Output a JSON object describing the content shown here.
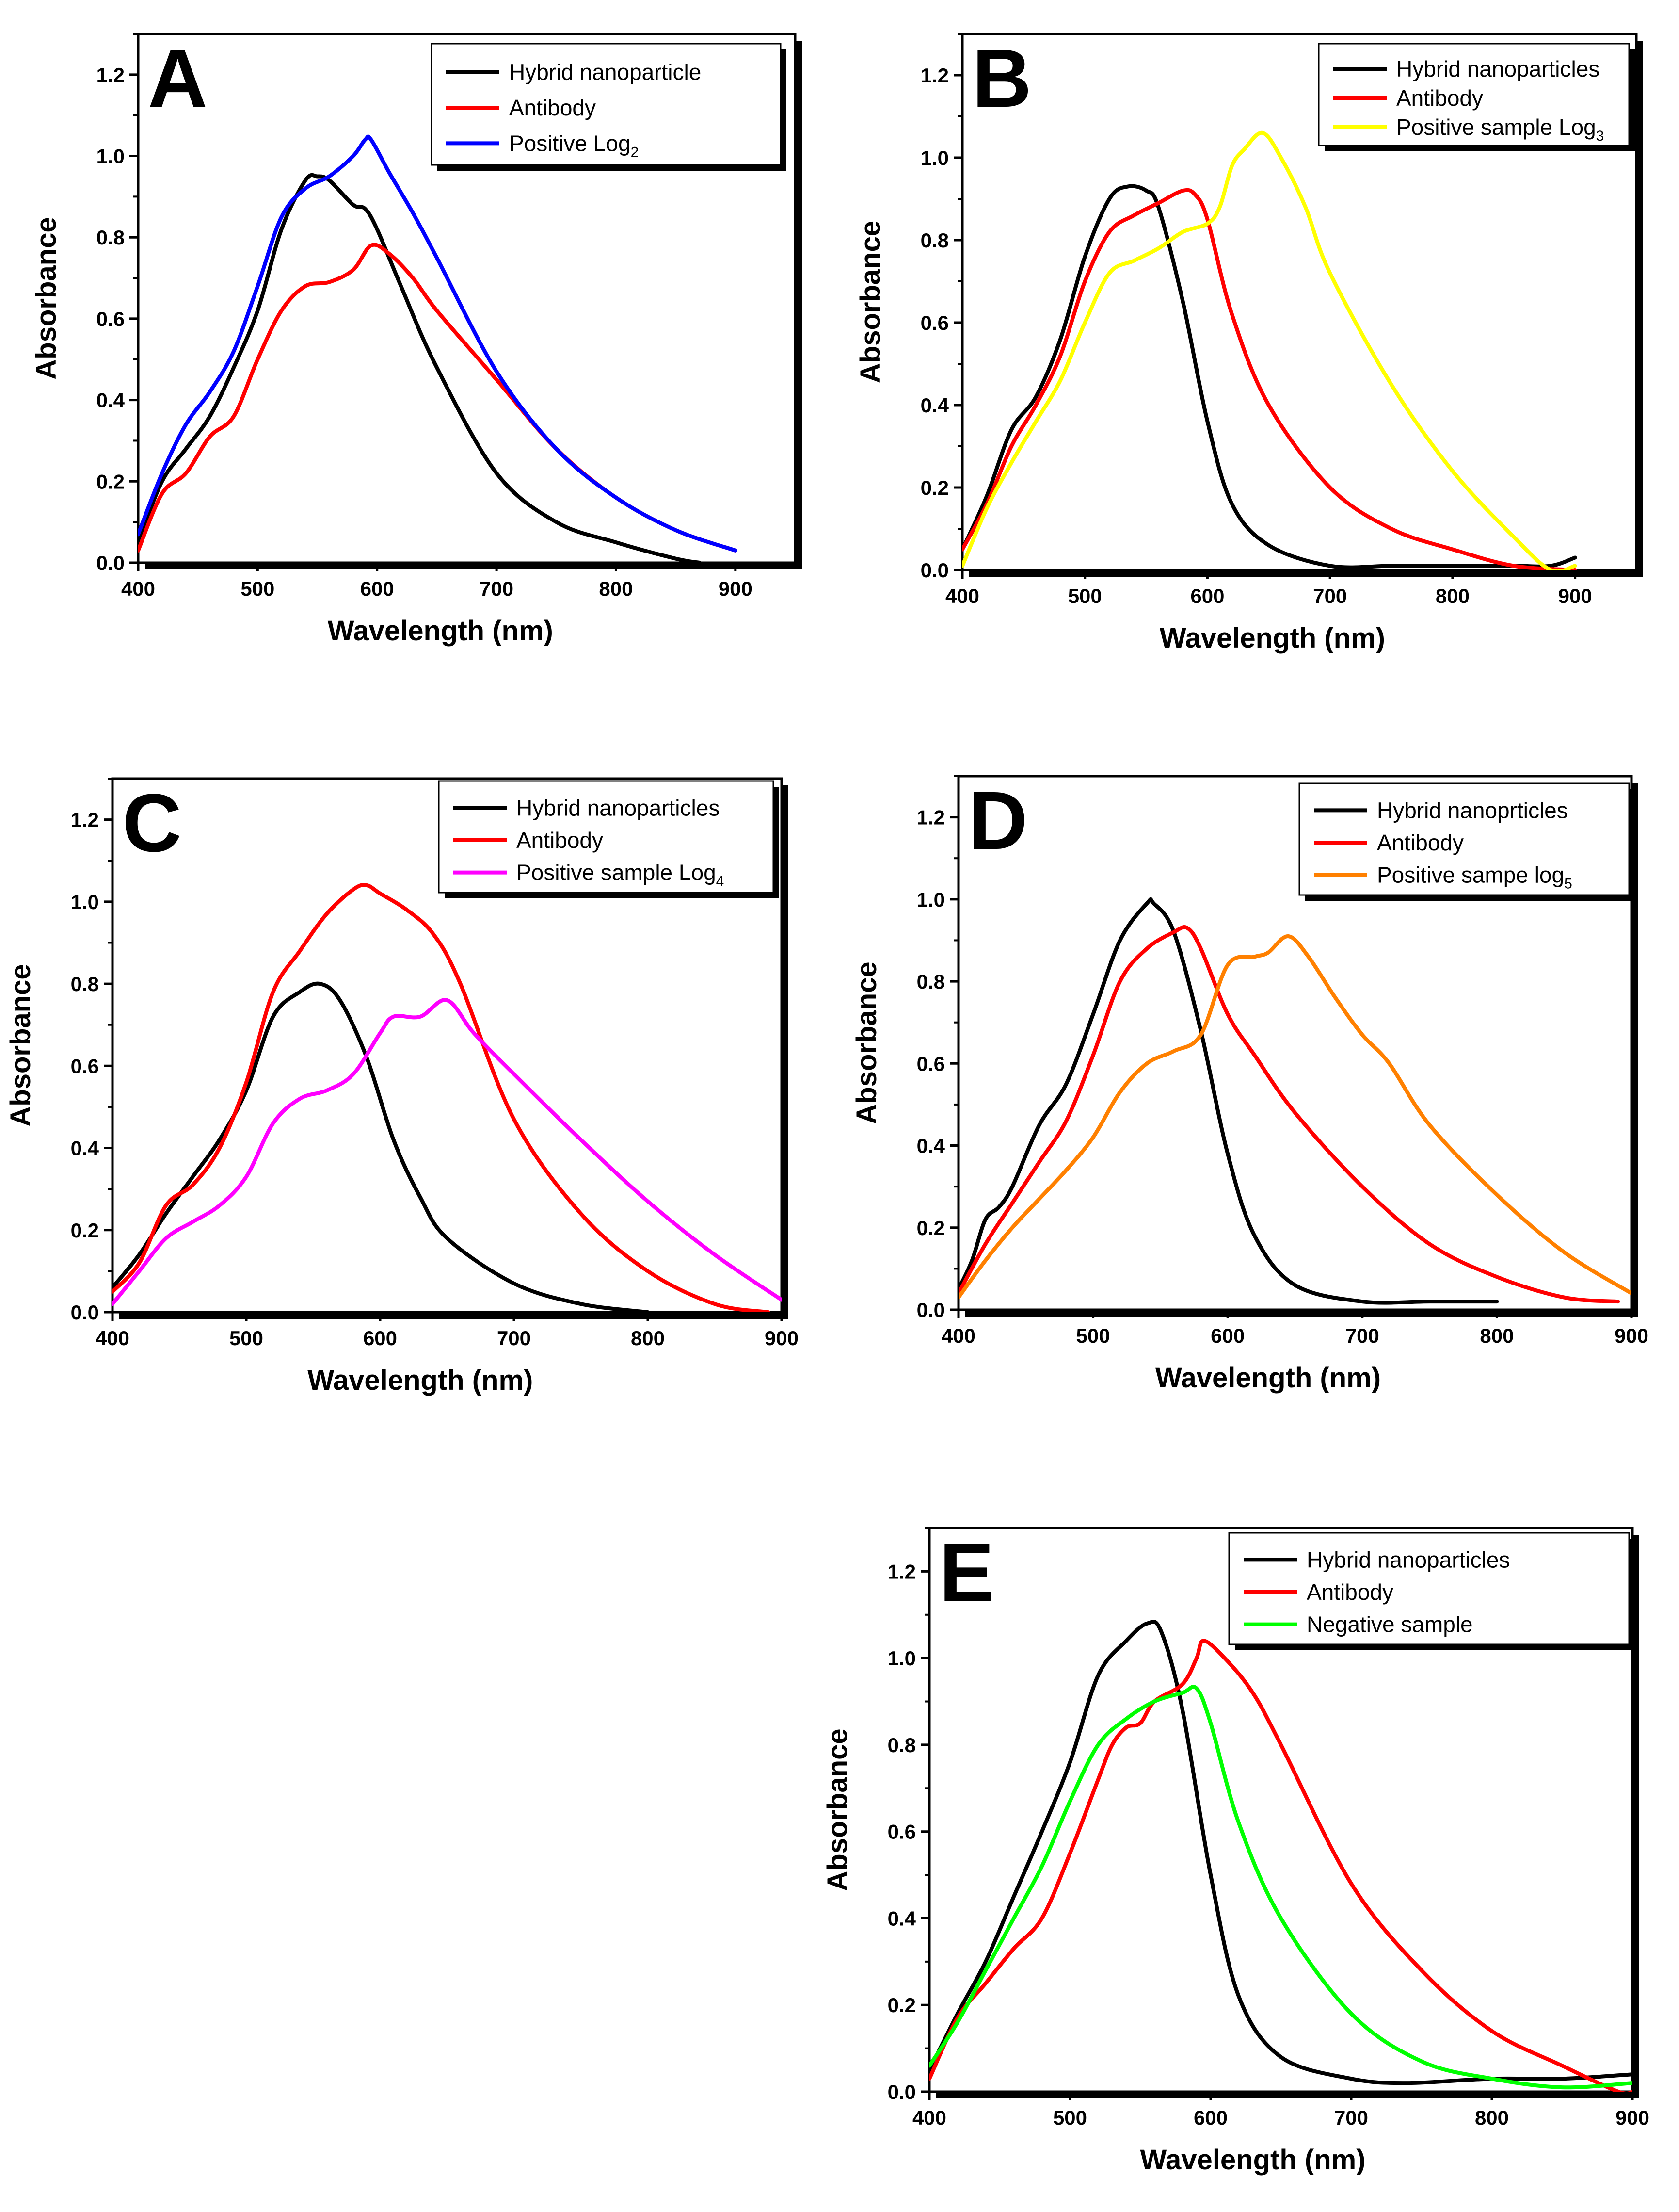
{
  "chart_data": [
    {
      "type": "line",
      "panel": "A",
      "xlabel": "Wavelength (nm)",
      "ylabel": "Absorbance",
      "xlim": [
        400,
        950
      ],
      "ylim": [
        0,
        1.3
      ],
      "xticks": [
        400,
        500,
        600,
        700,
        800,
        900
      ],
      "yticks": [
        0.0,
        0.2,
        0.4,
        0.6,
        0.8,
        1.0,
        1.2
      ],
      "legend_position": "top-right",
      "series": [
        {
          "name": "Hybrid nanoparticle",
          "color": "#000000",
          "x": [
            400,
            420,
            440,
            460,
            480,
            500,
            520,
            540,
            550,
            560,
            580,
            590,
            600,
            620,
            650,
            700,
            750,
            800,
            850,
            870
          ],
          "y": [
            0.05,
            0.2,
            0.28,
            0.36,
            0.48,
            0.62,
            0.82,
            0.94,
            0.95,
            0.94,
            0.88,
            0.87,
            0.82,
            0.68,
            0.48,
            0.22,
            0.1,
            0.05,
            0.01,
            0.0
          ]
        },
        {
          "name": "Antibody",
          "color": "#ff0000",
          "x": [
            400,
            420,
            440,
            460,
            480,
            500,
            520,
            540,
            560,
            580,
            595,
            610,
            630,
            650,
            700,
            750,
            800,
            850,
            900
          ],
          "y": [
            0.03,
            0.17,
            0.22,
            0.31,
            0.36,
            0.5,
            0.62,
            0.68,
            0.69,
            0.72,
            0.78,
            0.76,
            0.7,
            0.62,
            0.45,
            0.28,
            0.16,
            0.08,
            0.03
          ]
        },
        {
          "name": "Positive Log",
          "name_subscript": "2",
          "color": "#0000ff",
          "x": [
            400,
            420,
            440,
            460,
            480,
            500,
            520,
            540,
            560,
            580,
            590,
            595,
            610,
            630,
            650,
            700,
            750,
            800,
            850,
            900
          ],
          "y": [
            0.07,
            0.22,
            0.34,
            0.42,
            0.52,
            0.68,
            0.85,
            0.92,
            0.95,
            1.0,
            1.04,
            1.04,
            0.96,
            0.86,
            0.75,
            0.47,
            0.28,
            0.16,
            0.08,
            0.03
          ]
        }
      ]
    },
    {
      "type": "line",
      "panel": "B",
      "xlabel": "Wavelength (nm)",
      "ylabel": "Absorbance",
      "xlim": [
        400,
        950
      ],
      "ylim": [
        0,
        1.3
      ],
      "xticks": [
        400,
        500,
        600,
        700,
        800,
        900
      ],
      "yticks": [
        0.0,
        0.2,
        0.4,
        0.6,
        0.8,
        1.0,
        1.2
      ],
      "legend_position": "top-right",
      "series": [
        {
          "name": "Hybrid nanoparticles",
          "color": "#000000",
          "x": [
            400,
            420,
            440,
            460,
            480,
            500,
            520,
            535,
            550,
            560,
            580,
            600,
            620,
            650,
            700,
            750,
            800,
            850,
            880,
            900
          ],
          "y": [
            0.05,
            0.18,
            0.34,
            0.42,
            0.56,
            0.76,
            0.9,
            0.93,
            0.92,
            0.88,
            0.65,
            0.36,
            0.16,
            0.06,
            0.01,
            0.01,
            0.01,
            0.01,
            0.01,
            0.03
          ]
        },
        {
          "name": "Antibody",
          "color": "#ff0000",
          "x": [
            400,
            420,
            440,
            460,
            480,
            500,
            520,
            540,
            560,
            580,
            590,
            600,
            620,
            650,
            700,
            750,
            800,
            850,
            900
          ],
          "y": [
            0.05,
            0.16,
            0.3,
            0.4,
            0.52,
            0.7,
            0.82,
            0.86,
            0.89,
            0.92,
            0.91,
            0.85,
            0.62,
            0.4,
            0.2,
            0.1,
            0.05,
            0.01,
            0.0
          ]
        },
        {
          "name": "Positive sample Log",
          "name_subscript": "3",
          "color": "#ffff00",
          "x": [
            400,
            420,
            440,
            460,
            480,
            500,
            520,
            540,
            560,
            580,
            600,
            610,
            620,
            630,
            645,
            660,
            680,
            700,
            750,
            800,
            850,
            880,
            900
          ],
          "y": [
            0.01,
            0.15,
            0.26,
            0.36,
            0.46,
            0.6,
            0.72,
            0.75,
            0.78,
            0.82,
            0.84,
            0.88,
            0.98,
            1.02,
            1.06,
            1.0,
            0.88,
            0.72,
            0.45,
            0.24,
            0.08,
            0.0,
            0.01
          ]
        }
      ]
    },
    {
      "type": "line",
      "panel": "C",
      "xlabel": "Wavelength (nm)",
      "ylabel": "Absorbance",
      "xlim": [
        400,
        900
      ],
      "ylim": [
        0,
        1.3
      ],
      "xticks": [
        400,
        500,
        600,
        700,
        800,
        900
      ],
      "yticks": [
        0.0,
        0.2,
        0.4,
        0.6,
        0.8,
        1.0,
        1.2
      ],
      "legend_position": "top-right",
      "series": [
        {
          "name": "Hybrid nanoparticles",
          "color": "#000000",
          "x": [
            400,
            420,
            440,
            460,
            480,
            500,
            520,
            540,
            555,
            570,
            590,
            610,
            630,
            650,
            700,
            750,
            800
          ],
          "y": [
            0.06,
            0.14,
            0.24,
            0.33,
            0.42,
            0.54,
            0.72,
            0.78,
            0.8,
            0.76,
            0.62,
            0.42,
            0.28,
            0.18,
            0.07,
            0.02,
            0.0
          ]
        },
        {
          "name": "Antibody",
          "color": "#ff0000",
          "x": [
            400,
            420,
            440,
            460,
            480,
            500,
            520,
            540,
            560,
            580,
            590,
            600,
            620,
            640,
            660,
            700,
            750,
            800,
            850,
            890
          ],
          "y": [
            0.05,
            0.12,
            0.26,
            0.31,
            0.4,
            0.56,
            0.78,
            0.88,
            0.97,
            1.03,
            1.04,
            1.02,
            0.98,
            0.92,
            0.8,
            0.47,
            0.24,
            0.1,
            0.02,
            0.0
          ]
        },
        {
          "name": "Positive sample Log",
          "name_subscript": "4",
          "color": "#ff00ff",
          "x": [
            400,
            420,
            440,
            460,
            480,
            500,
            520,
            540,
            560,
            580,
            600,
            610,
            630,
            650,
            670,
            700,
            750,
            800,
            850,
            900
          ],
          "y": [
            0.02,
            0.1,
            0.18,
            0.22,
            0.26,
            0.33,
            0.46,
            0.52,
            0.54,
            0.58,
            0.68,
            0.72,
            0.72,
            0.76,
            0.68,
            0.58,
            0.42,
            0.27,
            0.14,
            0.03
          ]
        }
      ]
    },
    {
      "type": "line",
      "panel": "D",
      "xlabel": "Wavelength (nm)",
      "ylabel": "Absorbance",
      "xlim": [
        400,
        900
      ],
      "ylim": [
        0,
        1.3
      ],
      "xticks": [
        400,
        500,
        600,
        700,
        800,
        900
      ],
      "yticks": [
        0.0,
        0.2,
        0.4,
        0.6,
        0.8,
        1.0,
        1.2
      ],
      "legend_position": "top-right",
      "series": [
        {
          "name": "Hybrid nanoprticles",
          "color": "#000000",
          "x": [
            400,
            410,
            420,
            430,
            440,
            460,
            480,
            500,
            520,
            540,
            545,
            560,
            580,
            600,
            620,
            650,
            700,
            750,
            800
          ],
          "y": [
            0.05,
            0.12,
            0.22,
            0.25,
            0.3,
            0.45,
            0.55,
            0.72,
            0.9,
            0.99,
            0.99,
            0.92,
            0.68,
            0.38,
            0.18,
            0.06,
            0.02,
            0.02,
            0.02
          ]
        },
        {
          "name": "Antibody",
          "color": "#ff0000",
          "x": [
            400,
            420,
            440,
            460,
            480,
            500,
            520,
            540,
            560,
            570,
            580,
            600,
            620,
            650,
            700,
            750,
            800,
            850,
            890
          ],
          "y": [
            0.04,
            0.16,
            0.26,
            0.36,
            0.46,
            0.62,
            0.8,
            0.88,
            0.92,
            0.93,
            0.88,
            0.72,
            0.62,
            0.48,
            0.3,
            0.16,
            0.08,
            0.03,
            0.02
          ]
        },
        {
          "name": "Positive sampe log",
          "name_subscript": "5",
          "color": "#ff8000",
          "x": [
            400,
            420,
            440,
            460,
            480,
            500,
            520,
            540,
            560,
            580,
            600,
            620,
            630,
            645,
            660,
            680,
            700,
            720,
            750,
            800,
            850,
            900
          ],
          "y": [
            0.03,
            0.12,
            0.2,
            0.27,
            0.34,
            0.42,
            0.53,
            0.6,
            0.63,
            0.67,
            0.84,
            0.86,
            0.87,
            0.91,
            0.86,
            0.76,
            0.67,
            0.6,
            0.45,
            0.28,
            0.14,
            0.04
          ]
        }
      ]
    },
    {
      "type": "line",
      "panel": "E",
      "xlabel": "Wavelength (nm)",
      "ylabel": "Absorbance",
      "xlim": [
        400,
        900
      ],
      "ylim": [
        0,
        1.3
      ],
      "xticks": [
        400,
        500,
        600,
        700,
        800,
        900
      ],
      "yticks": [
        0.0,
        0.2,
        0.4,
        0.6,
        0.8,
        1.0,
        1.2
      ],
      "legend_position": "top-right",
      "series": [
        {
          "name": "Hybrid nanoparticles",
          "color": "#000000",
          "x": [
            400,
            420,
            440,
            460,
            480,
            500,
            520,
            540,
            555,
            565,
            580,
            600,
            620,
            650,
            700,
            740,
            800,
            850,
            900
          ],
          "y": [
            0.05,
            0.18,
            0.3,
            0.45,
            0.6,
            0.76,
            0.96,
            1.04,
            1.08,
            1.06,
            0.88,
            0.5,
            0.22,
            0.08,
            0.03,
            0.02,
            0.03,
            0.03,
            0.04
          ]
        },
        {
          "name": "Antibody",
          "color": "#ff0000",
          "x": [
            400,
            420,
            440,
            460,
            480,
            500,
            520,
            530,
            540,
            550,
            560,
            580,
            590,
            595,
            610,
            630,
            650,
            700,
            750,
            800,
            850,
            890,
            900
          ],
          "y": [
            0.03,
            0.17,
            0.25,
            0.33,
            0.4,
            0.55,
            0.72,
            0.8,
            0.84,
            0.85,
            0.9,
            0.94,
            1.0,
            1.04,
            1.0,
            0.92,
            0.8,
            0.48,
            0.28,
            0.14,
            0.06,
            0.0,
            0.0
          ]
        },
        {
          "name": "Negative sample",
          "color": "#00ff00",
          "x": [
            400,
            420,
            440,
            460,
            480,
            500,
            520,
            540,
            560,
            580,
            590,
            600,
            620,
            650,
            700,
            750,
            800,
            850,
            900
          ],
          "y": [
            0.06,
            0.16,
            0.28,
            0.4,
            0.52,
            0.67,
            0.8,
            0.86,
            0.9,
            0.92,
            0.93,
            0.85,
            0.62,
            0.4,
            0.18,
            0.07,
            0.03,
            0.01,
            0.02
          ]
        }
      ]
    }
  ]
}
